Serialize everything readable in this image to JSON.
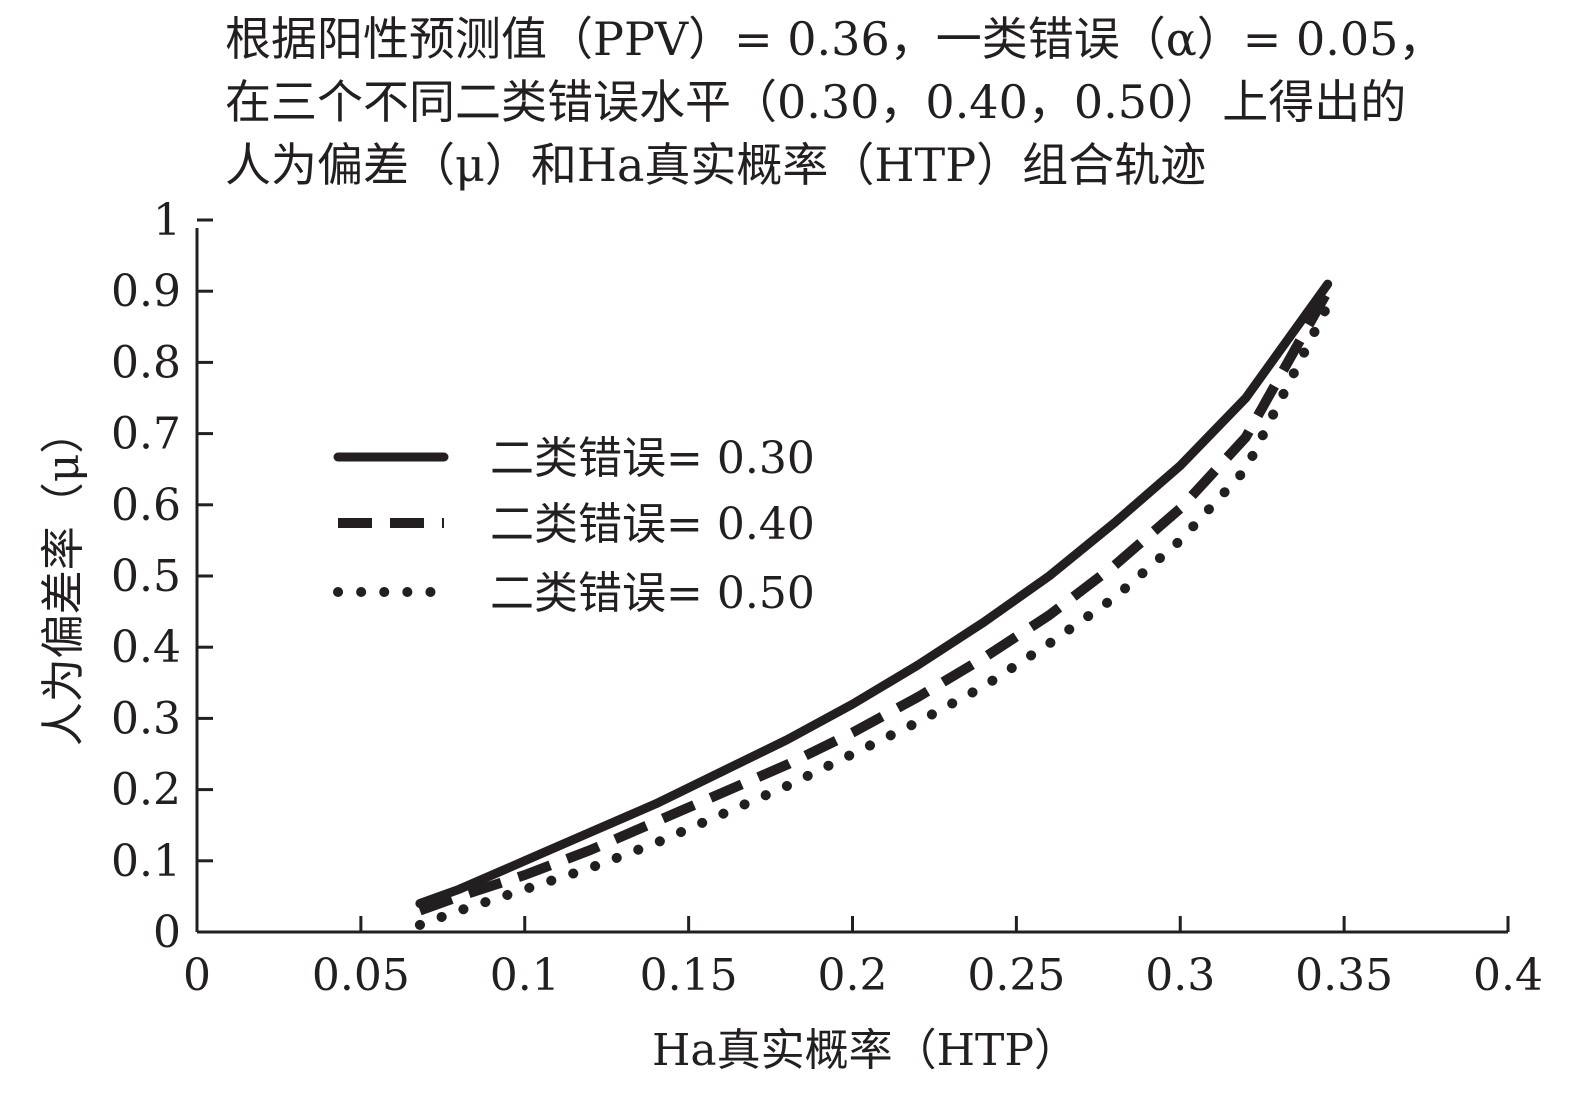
{
  "chart_data": {
    "type": "line",
    "title_lines": [
      "根据阳性预测值（PPV）= 0.36，一类错误（α）= 0.05，",
      "在三个不同二类错误水平（0.30，0.40，0.50）上得出的",
      "人为偏差（μ）和Ha真实概率（HTP）组合轨迹"
    ],
    "xlabel": "Ha真实概率（HTP）",
    "ylabel": "人为偏差率（μ）",
    "xlim": [
      0,
      0.4
    ],
    "ylim": [
      0,
      1
    ],
    "x_ticks": [
      0,
      0.05,
      0.1,
      0.15,
      0.2,
      0.25,
      0.3,
      0.35,
      0.4
    ],
    "x_tick_labels": [
      "0",
      "0.05",
      "0.1",
      "0.15",
      "0.2",
      "0.25",
      "0.3",
      "0.35",
      "0.4"
    ],
    "y_ticks": [
      0,
      0.1,
      0.2,
      0.3,
      0.4,
      0.5,
      0.6,
      0.7,
      0.8,
      0.9,
      1
    ],
    "y_tick_labels": [
      "0",
      "0.1",
      "0.2",
      "0.3",
      "0.4",
      "0.5",
      "0.6",
      "0.7",
      "0.8",
      "0.9",
      "1"
    ],
    "grid": false,
    "legend_position": "center-left",
    "series": [
      {
        "name": "二类错误= 0.30",
        "style": "solid",
        "color": "#231f20",
        "x": [
          0.068,
          0.08,
          0.1,
          0.12,
          0.14,
          0.16,
          0.18,
          0.2,
          0.22,
          0.24,
          0.26,
          0.28,
          0.3,
          0.32,
          0.345
        ],
        "y": [
          0.04,
          0.06,
          0.1,
          0.14,
          0.18,
          0.225,
          0.27,
          0.32,
          0.375,
          0.435,
          0.5,
          0.575,
          0.655,
          0.75,
          0.91
        ]
      },
      {
        "name": "二类错误= 0.40",
        "style": "dashed",
        "color": "#231f20",
        "x": [
          0.068,
          0.08,
          0.1,
          0.12,
          0.14,
          0.16,
          0.18,
          0.2,
          0.22,
          0.24,
          0.26,
          0.28,
          0.3,
          0.32,
          0.345
        ],
        "y": [
          0.03,
          0.05,
          0.08,
          0.115,
          0.155,
          0.195,
          0.235,
          0.28,
          0.33,
          0.385,
          0.445,
          0.515,
          0.595,
          0.695,
          0.9
        ]
      },
      {
        "name": "二类错误= 0.50",
        "style": "dotted",
        "color": "#231f20",
        "x": [
          0.068,
          0.08,
          0.1,
          0.12,
          0.14,
          0.16,
          0.18,
          0.2,
          0.22,
          0.24,
          0.26,
          0.28,
          0.3,
          0.32,
          0.345
        ],
        "y": [
          0.01,
          0.03,
          0.06,
          0.09,
          0.125,
          0.165,
          0.205,
          0.25,
          0.295,
          0.345,
          0.405,
          0.47,
          0.55,
          0.65,
          0.88
        ]
      }
    ]
  }
}
